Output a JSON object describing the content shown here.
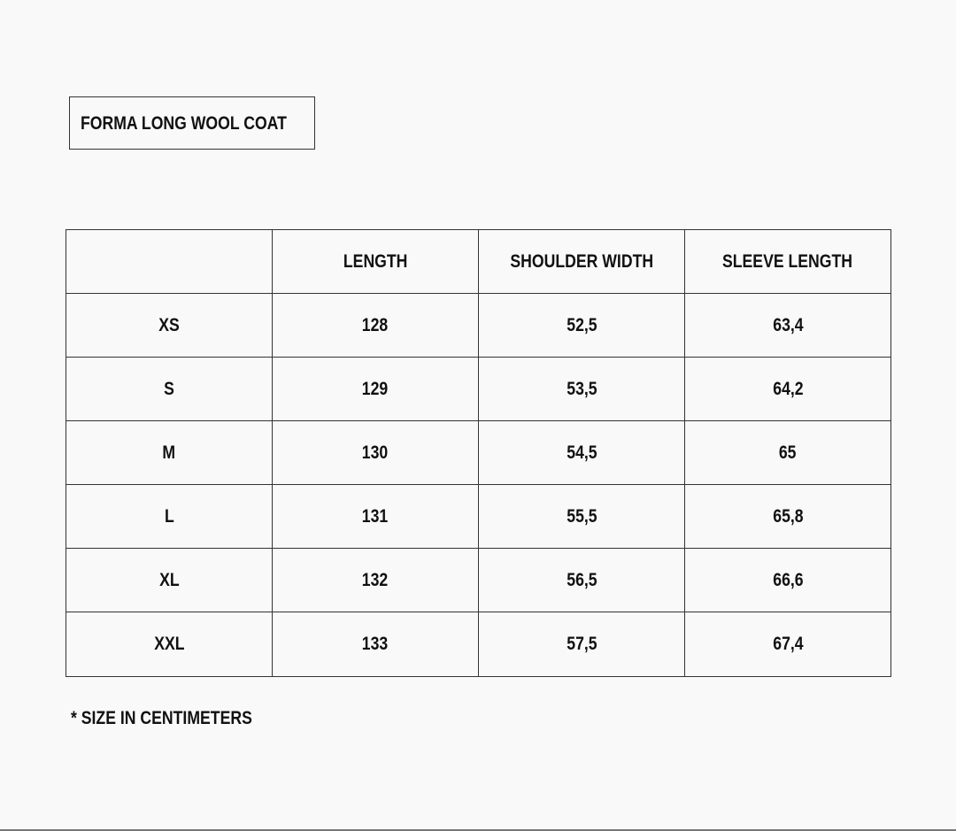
{
  "title": "FORMA LONG WOOL COAT",
  "table": {
    "headers": [
      "",
      "LENGTH",
      "SHOULDER WIDTH",
      "SLEEVE LENGTH"
    ],
    "rows": [
      [
        "XS",
        "128",
        "52,5",
        "63,4"
      ],
      [
        "S",
        "129",
        "53,5",
        "64,2"
      ],
      [
        "M",
        "130",
        "54,5",
        "65"
      ],
      [
        "L",
        "131",
        "55,5",
        "65,8"
      ],
      [
        "XL",
        "132",
        "56,5",
        "66,6"
      ],
      [
        "XXL",
        "133",
        "57,5",
        "67,4"
      ]
    ]
  },
  "footnote": "*  SIZE IN CENTIMETERS"
}
